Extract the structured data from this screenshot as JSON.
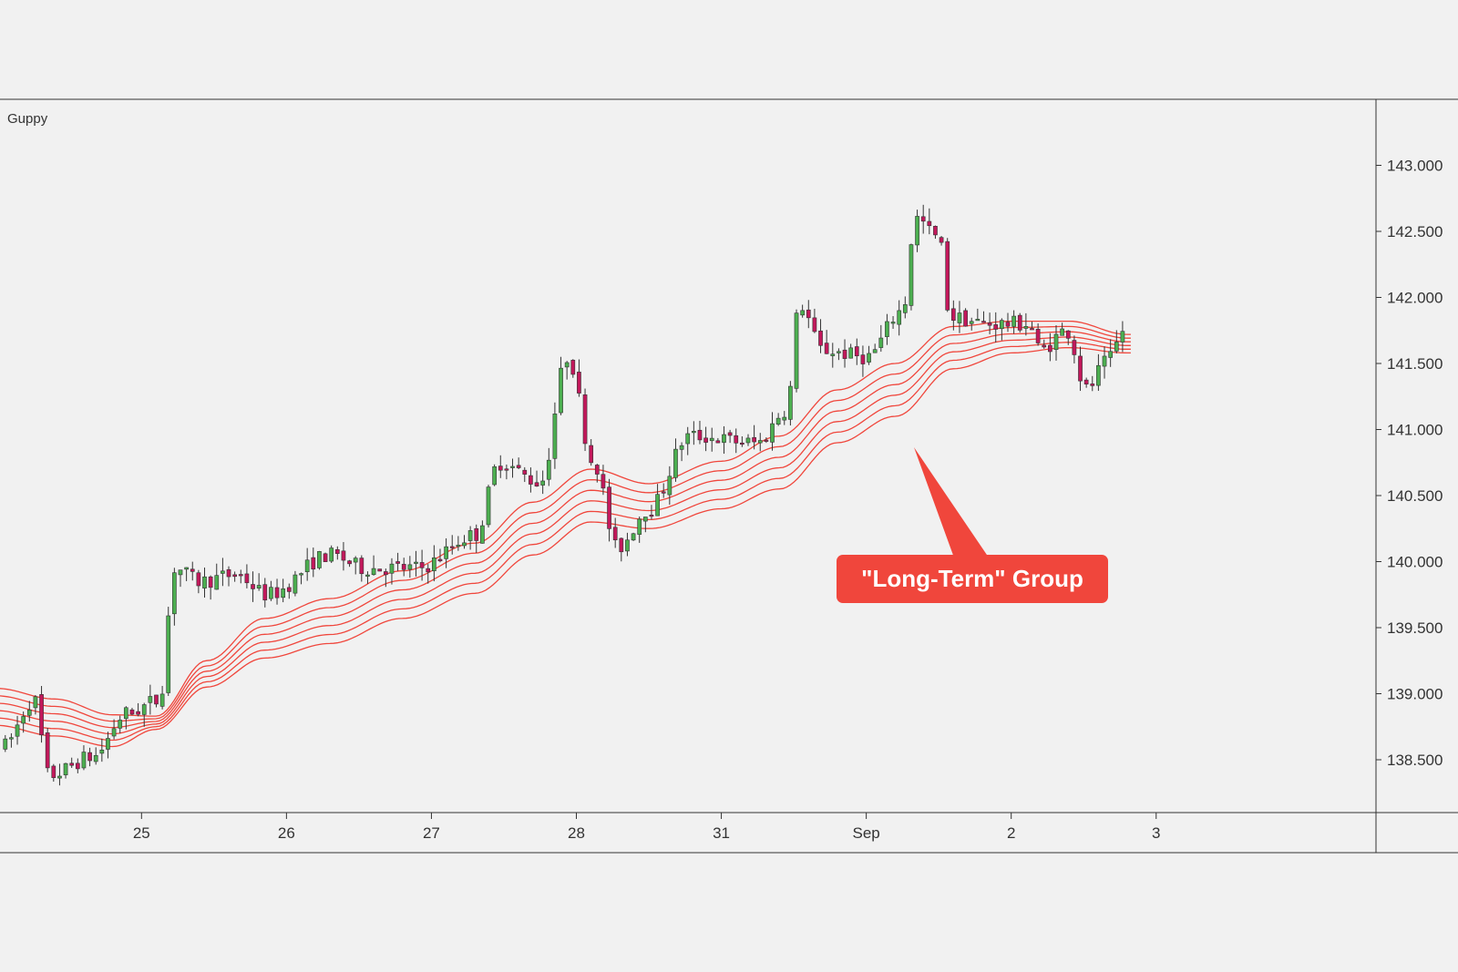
{
  "colors": {
    "background": "#f1f1f1",
    "axis": "#333333",
    "up_candle": "#4caf50",
    "down_candle": "#c2185b",
    "wick": "#333333",
    "ema_lines": "#f0463c",
    "callout": "#f0463c"
  },
  "chart_data": {
    "type": "candlestick",
    "title": "Guppy",
    "grid": false,
    "y_axis": {
      "position": "right",
      "ylim": [
        138.1,
        143.5
      ],
      "ticks": [
        "143.000",
        "142.500",
        "142.000",
        "141.500",
        "141.000",
        "140.500",
        "140.000",
        "139.500",
        "139.000",
        "138.500"
      ]
    },
    "x_axis": {
      "ticks": [
        "25",
        "26",
        "27",
        "28",
        "31",
        "Sep",
        "2",
        "3"
      ],
      "tick_session_index": [
        1,
        2,
        3,
        4,
        5,
        6,
        7,
        8
      ],
      "xlim_sessions": [
        0.0236,
        9.5166
      ]
    },
    "price_anchors": [
      {
        "s": 0.04,
        "p": 138.6
      },
      {
        "s": 0.26,
        "p": 138.95
      },
      {
        "s": 0.36,
        "p": 138.38
      },
      {
        "s": 0.66,
        "p": 138.52
      },
      {
        "s": 0.9,
        "p": 138.85
      },
      {
        "s": 1.12,
        "p": 138.95
      },
      {
        "s": 1.23,
        "p": 139.95
      },
      {
        "s": 1.4,
        "p": 139.85
      },
      {
        "s": 1.65,
        "p": 139.9
      },
      {
        "s": 1.87,
        "p": 139.75
      },
      {
        "s": 2.3,
        "p": 140.05
      },
      {
        "s": 2.55,
        "p": 139.95
      },
      {
        "s": 2.9,
        "p": 139.95
      },
      {
        "s": 3.3,
        "p": 140.2
      },
      {
        "s": 3.47,
        "p": 140.75
      },
      {
        "s": 3.75,
        "p": 140.6
      },
      {
        "s": 3.94,
        "p": 141.55
      },
      {
        "s": 4.12,
        "p": 140.75
      },
      {
        "s": 4.28,
        "p": 140.1
      },
      {
        "s": 4.5,
        "p": 140.4
      },
      {
        "s": 4.78,
        "p": 140.95
      },
      {
        "s": 5.25,
        "p": 140.9
      },
      {
        "s": 5.45,
        "p": 141.15
      },
      {
        "s": 5.54,
        "p": 141.95
      },
      {
        "s": 5.7,
        "p": 141.6
      },
      {
        "s": 6.0,
        "p": 141.55
      },
      {
        "s": 6.25,
        "p": 141.9
      },
      {
        "s": 6.34,
        "p": 142.6
      },
      {
        "s": 6.5,
        "p": 142.45
      },
      {
        "s": 6.58,
        "p": 141.85
      },
      {
        "s": 6.85,
        "p": 141.8
      },
      {
        "s": 7.12,
        "p": 141.8
      },
      {
        "s": 7.2,
        "p": 141.6
      },
      {
        "s": 7.38,
        "p": 141.75
      },
      {
        "s": 7.52,
        "p": 141.3
      },
      {
        "s": 7.65,
        "p": 141.5
      },
      {
        "s": 7.8,
        "p": 141.78
      }
    ],
    "long_term_emas": {
      "count": 6,
      "centerline": [
        {
          "s": 0.0,
          "p": 138.9
        },
        {
          "s": 0.4,
          "p": 138.82
        },
        {
          "s": 0.8,
          "p": 138.72
        },
        {
          "s": 1.1,
          "p": 138.78
        },
        {
          "s": 1.45,
          "p": 139.15
        },
        {
          "s": 1.85,
          "p": 139.42
        },
        {
          "s": 2.3,
          "p": 139.55
        },
        {
          "s": 2.8,
          "p": 139.75
        },
        {
          "s": 3.3,
          "p": 139.95
        },
        {
          "s": 3.7,
          "p": 140.25
        },
        {
          "s": 4.1,
          "p": 140.5
        },
        {
          "s": 4.5,
          "p": 140.42
        },
        {
          "s": 5.0,
          "p": 140.58
        },
        {
          "s": 5.4,
          "p": 140.75
        },
        {
          "s": 5.8,
          "p": 141.1
        },
        {
          "s": 6.2,
          "p": 141.3
        },
        {
          "s": 6.6,
          "p": 141.62
        },
        {
          "s": 7.0,
          "p": 141.7
        },
        {
          "s": 7.4,
          "p": 141.72
        },
        {
          "s": 7.8,
          "p": 141.65
        }
      ],
      "spread": [
        0.14,
        0.14,
        0.12,
        0.05,
        0.1,
        0.15,
        0.17,
        0.18,
        0.19,
        0.2,
        0.2,
        0.17,
        0.18,
        0.2,
        0.2,
        0.2,
        0.16,
        0.12,
        0.1,
        0.07
      ]
    },
    "annotations": [
      {
        "text": "\"Long-Term\" Group"
      }
    ]
  }
}
